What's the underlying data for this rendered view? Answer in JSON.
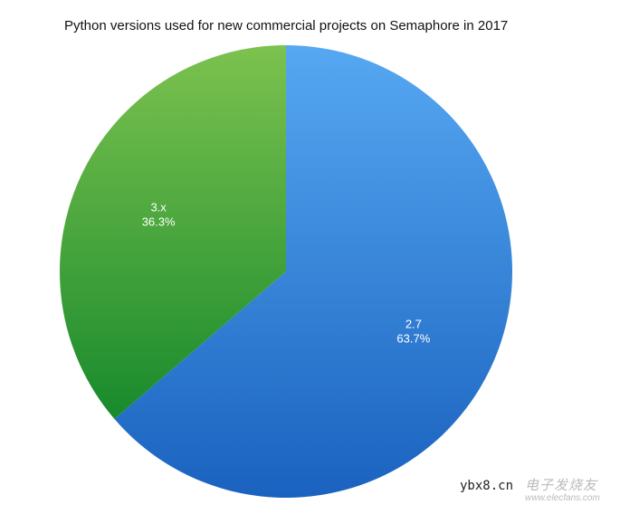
{
  "chart_data": {
    "type": "pie",
    "title": "Python versions used for new commercial projects on Semaphore in 2017",
    "slices": [
      {
        "label": "2.7",
        "value": 63.7,
        "value_label": "63.7%",
        "color_top": "#56a8f2",
        "color_bottom": "#1a62bf"
      },
      {
        "label": "3.x",
        "value": 36.3,
        "value_label": "36.3%",
        "color_top": "#7cc24f",
        "color_bottom": "#188a2c"
      }
    ],
    "start": "top",
    "direction": "clockwise"
  },
  "watermark": {
    "site": "ybx8.cn",
    "brand": "电子发烧友",
    "url": "www.elecfans.com"
  }
}
